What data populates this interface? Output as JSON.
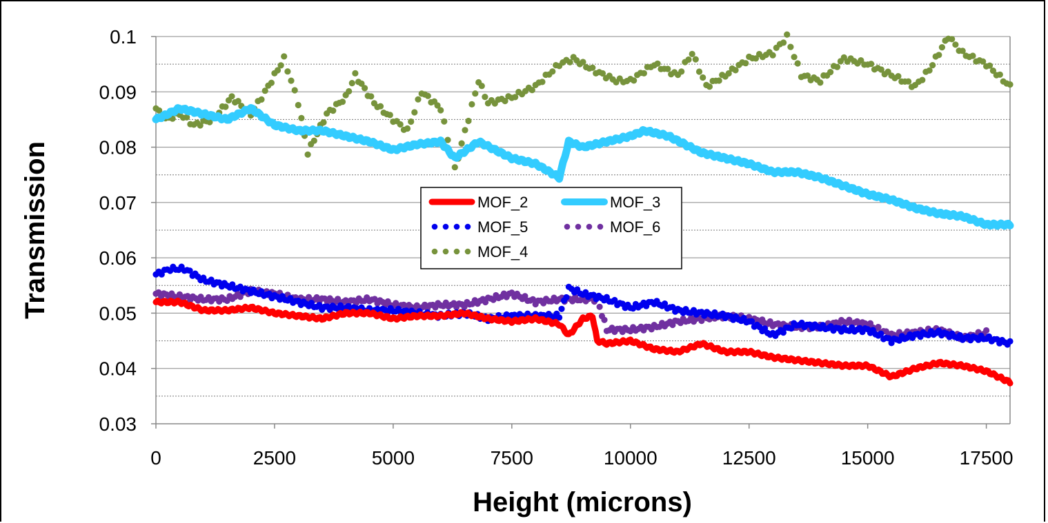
{
  "chart_data": {
    "type": "line",
    "title": "",
    "xlabel": "Height (microns)",
    "ylabel": "Transmission",
    "xlim": [
      0,
      18000
    ],
    "ylim": [
      0.03,
      0.1
    ],
    "x_ticks": [
      0,
      2500,
      5000,
      7500,
      10000,
      12500,
      15000,
      17500
    ],
    "x_tick_labels": [
      "0",
      "2500",
      "5000",
      "7500",
      "10000",
      "12500",
      "15000",
      "17500"
    ],
    "y_ticks": [
      0.03,
      0.04,
      0.05,
      0.06,
      0.07,
      0.08,
      0.09,
      0.1
    ],
    "y_tick_labels": [
      "0.03",
      "0.04",
      "0.05",
      "0.06",
      "0.07",
      "0.08",
      "0.09",
      "0.1"
    ],
    "grid": true,
    "legend_placement": "center",
    "series": [
      {
        "name": "MOF_2",
        "style": "solid",
        "color": "#ff0000",
        "x": [
          0,
          500,
          1000,
          1500,
          2000,
          2500,
          3000,
          3500,
          4000,
          4500,
          5000,
          5500,
          6000,
          6500,
          7000,
          7500,
          8000,
          8500,
          8700,
          9000,
          9200,
          9300,
          9500,
          10000,
          10500,
          11000,
          11500,
          12000,
          12500,
          13000,
          13500,
          14000,
          14500,
          15000,
          15500,
          16000,
          16500,
          17000,
          17500,
          18000
        ],
        "y": [
          0.052,
          0.052,
          0.0505,
          0.0505,
          0.051,
          0.05,
          0.0495,
          0.049,
          0.05,
          0.05,
          0.049,
          0.0495,
          0.0495,
          0.05,
          0.049,
          0.0485,
          0.049,
          0.048,
          0.046,
          0.049,
          0.0495,
          0.045,
          0.0445,
          0.045,
          0.0435,
          0.043,
          0.0445,
          0.043,
          0.043,
          0.042,
          0.0415,
          0.041,
          0.0405,
          0.0405,
          0.0385,
          0.04,
          0.041,
          0.0405,
          0.0395,
          0.0375
        ]
      },
      {
        "name": "MOF_3",
        "style": "solid",
        "color": "#33ccff",
        "x": [
          0,
          500,
          1000,
          1500,
          2000,
          2500,
          3000,
          3500,
          4000,
          4500,
          5000,
          5500,
          6000,
          6300,
          6800,
          7500,
          8000,
          8500,
          8700,
          9000,
          9500,
          10000,
          10300,
          10800,
          11500,
          12000,
          12500,
          13000,
          13500,
          14000,
          14500,
          15000,
          15500,
          16000,
          16500,
          17000,
          17500,
          18000
        ],
        "y": [
          0.085,
          0.087,
          0.086,
          0.085,
          0.087,
          0.084,
          0.083,
          0.083,
          0.082,
          0.081,
          0.0795,
          0.0805,
          0.081,
          0.078,
          0.081,
          0.078,
          0.077,
          0.0745,
          0.081,
          0.08,
          0.081,
          0.082,
          0.083,
          0.082,
          0.079,
          0.078,
          0.077,
          0.0755,
          0.0755,
          0.0745,
          0.073,
          0.0715,
          0.0705,
          0.069,
          0.068,
          0.0675,
          0.066,
          0.066
        ]
      },
      {
        "name": "MOF_5",
        "style": "dotted",
        "color": "#0000ee",
        "x": [
          0,
          300,
          600,
          1000,
          1500,
          2000,
          2500,
          3000,
          3500,
          4000,
          4500,
          5000,
          5500,
          6000,
          6500,
          7000,
          7500,
          8000,
          8500,
          8700,
          9000,
          9500,
          10000,
          10500,
          11000,
          11500,
          12000,
          12500,
          13000,
          13500,
          14000,
          14500,
          15000,
          15500,
          16000,
          16500,
          17000,
          17500,
          18000
        ],
        "y": [
          0.057,
          0.058,
          0.058,
          0.056,
          0.055,
          0.054,
          0.053,
          0.052,
          0.051,
          0.051,
          0.0505,
          0.0505,
          0.05,
          0.0495,
          0.05,
          0.049,
          0.0495,
          0.0495,
          0.0495,
          0.0545,
          0.0535,
          0.0525,
          0.051,
          0.052,
          0.0505,
          0.05,
          0.0495,
          0.0485,
          0.046,
          0.048,
          0.0475,
          0.047,
          0.047,
          0.045,
          0.046,
          0.0465,
          0.0455,
          0.0455,
          0.0445
        ]
      },
      {
        "name": "MOF_6",
        "style": "dotted",
        "color": "#7030a0",
        "x": [
          0,
          500,
          1000,
          1500,
          2000,
          2500,
          3000,
          3500,
          4000,
          4500,
          5000,
          5500,
          6000,
          6500,
          7000,
          7500,
          8000,
          8500,
          9000,
          9300,
          9500,
          10000,
          10500,
          11000,
          11500,
          12000,
          12500,
          13000,
          13500,
          14000,
          14500,
          15000,
          15500,
          16000,
          16500,
          17000,
          17500
        ],
        "y": [
          0.0535,
          0.053,
          0.0525,
          0.0525,
          0.054,
          0.0535,
          0.0525,
          0.0525,
          0.052,
          0.0525,
          0.0515,
          0.051,
          0.0515,
          0.0515,
          0.0525,
          0.0535,
          0.052,
          0.0525,
          0.0525,
          0.0525,
          0.047,
          0.047,
          0.0475,
          0.0485,
          0.049,
          0.0495,
          0.049,
          0.048,
          0.0475,
          0.0475,
          0.0485,
          0.048,
          0.046,
          0.0465,
          0.047,
          0.0455,
          0.0465
        ]
      },
      {
        "name": "MOF_4",
        "style": "dotted",
        "color": "#77933c",
        "x": [
          0,
          200,
          500,
          800,
          1200,
          1600,
          2000,
          2300,
          2700,
          3000,
          3200,
          3600,
          4000,
          4200,
          4600,
          5000,
          5300,
          5600,
          6000,
          6300,
          6800,
          7000,
          7500,
          8000,
          8500,
          8800,
          9200,
          9700,
          10000,
          10500,
          11000,
          11300,
          11600,
          12000,
          12500,
          13000,
          13300,
          13600,
          14000,
          14500,
          15000,
          15500,
          16000,
          16300,
          16700,
          17000,
          17500,
          18000
        ],
        "y": [
          0.087,
          0.085,
          0.086,
          0.084,
          0.085,
          0.089,
          0.086,
          0.09,
          0.096,
          0.088,
          0.079,
          0.086,
          0.089,
          0.093,
          0.088,
          0.085,
          0.083,
          0.09,
          0.087,
          0.076,
          0.092,
          0.088,
          0.089,
          0.091,
          0.095,
          0.096,
          0.094,
          0.092,
          0.092,
          0.095,
          0.093,
          0.097,
          0.091,
          0.093,
          0.096,
          0.097,
          0.1,
          0.093,
          0.092,
          0.096,
          0.095,
          0.093,
          0.091,
          0.094,
          0.1,
          0.097,
          0.095,
          0.091
        ]
      }
    ]
  }
}
